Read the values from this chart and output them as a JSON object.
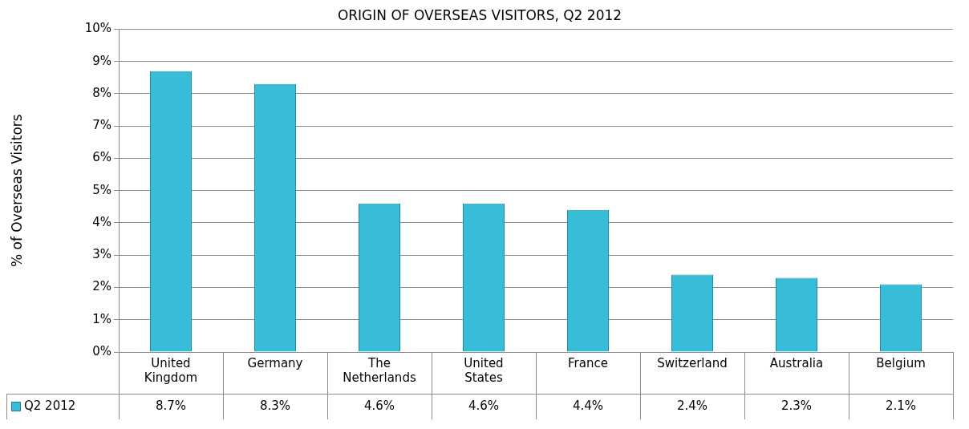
{
  "chart_data": {
    "type": "bar",
    "title": "ORIGIN OF OVERSEAS VISITORS, Q2 2012",
    "ylabel": "% of Overseas Visitors",
    "categories": [
      "United Kingdom",
      "Germany",
      "The Netherlands",
      "United States",
      "France",
      "Switzerland",
      "Australia",
      "Belgium"
    ],
    "series": [
      {
        "name": "Q2 2012",
        "color": "#38bdd8",
        "values": [
          8.7,
          8.3,
          4.6,
          4.6,
          4.4,
          2.4,
          2.3,
          2.1
        ],
        "value_labels": [
          "8.7%",
          "8.3%",
          "4.6%",
          "4.6%",
          "4.4%",
          "2.4%",
          "2.3%",
          "2.1%"
        ]
      }
    ],
    "ylim": [
      0,
      10
    ],
    "yticks": [
      {
        "value": 0,
        "label": "0%"
      },
      {
        "value": 1,
        "label": "1%"
      },
      {
        "value": 2,
        "label": "2%"
      },
      {
        "value": 3,
        "label": "3%"
      },
      {
        "value": 4,
        "label": "4%"
      },
      {
        "value": 5,
        "label": "5%"
      },
      {
        "value": 6,
        "label": "6%"
      },
      {
        "value": 7,
        "label": "7%"
      },
      {
        "value": 8,
        "label": "8%"
      },
      {
        "value": 9,
        "label": "9%"
      },
      {
        "value": 10,
        "label": "10%"
      }
    ],
    "grid": "y",
    "legend": "bottom left"
  }
}
